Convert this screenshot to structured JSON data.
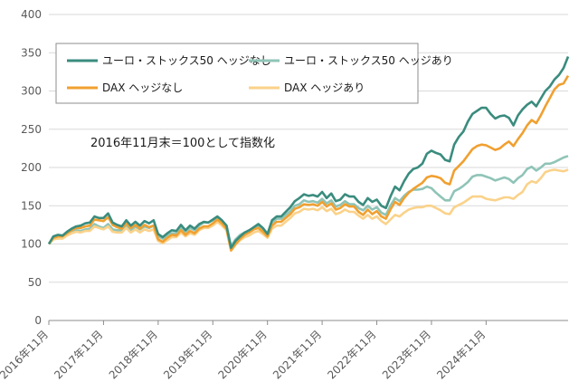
{
  "chart_data": {
    "type": "line",
    "ylim": [
      0,
      400
    ],
    "yticks": [
      0,
      50,
      100,
      150,
      200,
      250,
      300,
      350,
      400
    ],
    "x_tick_labels": [
      "2016年11月",
      "2017年11月",
      "2018年11月",
      "2019年11月",
      "2020年11月",
      "2021年11月",
      "2022年11月",
      "2023年11月",
      "2024年11月"
    ],
    "annotation": "2016年11月末＝100として指数化",
    "series": [
      {
        "name": "ユーロ・ストックス50 ヘッジなし",
        "color": "#3a8c7e",
        "values": [
          100,
          110,
          112,
          111,
          116,
          120,
          123,
          124,
          127,
          128,
          136,
          134,
          134,
          140,
          128,
          125,
          123,
          131,
          124,
          129,
          124,
          130,
          127,
          131,
          113,
          109,
          114,
          118,
          117,
          125,
          118,
          124,
          120,
          126,
          129,
          128,
          132,
          136,
          131,
          124,
          95,
          104,
          110,
          115,
          118,
          122,
          126,
          121,
          113,
          131,
          136,
          136,
          142,
          148,
          156,
          160,
          165,
          163,
          164,
          162,
          168,
          160,
          166,
          156,
          158,
          165,
          162,
          162,
          155,
          151,
          160,
          155,
          158,
          150,
          147,
          162,
          175,
          170,
          182,
          192,
          198,
          200,
          205,
          218,
          222,
          219,
          217,
          210,
          208,
          230,
          240,
          247,
          260,
          270,
          274,
          278,
          278,
          270,
          264,
          267,
          268,
          265,
          255,
          268,
          276,
          282,
          286,
          280,
          290,
          300,
          306,
          315,
          321,
          330,
          345
        ]
      },
      {
        "name": "ユーロ・ストックス50 ヘッジあり",
        "color": "#8fc4b7",
        "values": [
          100,
          107,
          109,
          109,
          113,
          117,
          118,
          117,
          119,
          120,
          126,
          123,
          121,
          126,
          119,
          118,
          118,
          124,
          118,
          123,
          119,
          123,
          121,
          124,
          110,
          107,
          111,
          114,
          114,
          121,
          116,
          121,
          118,
          124,
          128,
          128,
          131,
          135,
          130,
          124,
          97,
          106,
          112,
          115,
          117,
          121,
          124,
          119,
          112,
          128,
          133,
          133,
          138,
          143,
          150,
          152,
          157,
          155,
          156,
          154,
          159,
          153,
          157,
          149,
          151,
          156,
          152,
          152,
          147,
          144,
          150,
          145,
          148,
          141,
          138,
          150,
          160,
          156,
          163,
          168,
          171,
          171,
          172,
          175,
          173,
          167,
          162,
          157,
          157,
          169,
          172,
          176,
          181,
          188,
          190,
          190,
          188,
          186,
          183,
          185,
          187,
          185,
          180,
          186,
          190,
          198,
          201,
          196,
          200,
          205,
          205,
          207,
          210,
          213,
          215
        ]
      },
      {
        "name": "DAX ヘッジなし",
        "color": "#f0a030",
        "values": [
          100,
          108,
          110,
          110,
          114,
          118,
          121,
          121,
          123,
          124,
          132,
          131,
          130,
          135,
          125,
          122,
          120,
          127,
          121,
          125,
          120,
          125,
          122,
          124,
          106,
          103,
          108,
          112,
          111,
          118,
          112,
          117,
          114,
          120,
          123,
          123,
          127,
          132,
          127,
          120,
          92,
          100,
          107,
          112,
          115,
          119,
          121,
          116,
          110,
          124,
          129,
          129,
          134,
          139,
          146,
          148,
          152,
          151,
          152,
          150,
          155,
          149,
          153,
          145,
          147,
          152,
          149,
          149,
          142,
          138,
          145,
          139,
          143,
          136,
          133,
          145,
          155,
          151,
          160,
          167,
          172,
          176,
          180,
          187,
          189,
          188,
          186,
          180,
          178,
          196,
          202,
          208,
          216,
          224,
          228,
          230,
          229,
          226,
          223,
          225,
          230,
          234,
          228,
          237,
          245,
          255,
          262,
          258,
          268,
          280,
          291,
          302,
          308,
          310,
          320
        ]
      },
      {
        "name": "DAX ヘッジあり",
        "color": "#fad28a",
        "values": [
          100,
          106,
          107,
          107,
          111,
          114,
          116,
          115,
          117,
          117,
          123,
          121,
          119,
          123,
          116,
          115,
          115,
          121,
          115,
          119,
          115,
          119,
          117,
          119,
          104,
          101,
          105,
          109,
          109,
          115,
          110,
          114,
          112,
          118,
          121,
          121,
          124,
          129,
          124,
          118,
          91,
          99,
          105,
          109,
          111,
          115,
          117,
          113,
          108,
          120,
          124,
          124,
          129,
          134,
          140,
          142,
          146,
          145,
          146,
          144,
          148,
          143,
          146,
          139,
          141,
          145,
          142,
          142,
          137,
          133,
          138,
          133,
          136,
          130,
          126,
          132,
          138,
          136,
          141,
          145,
          147,
          148,
          148,
          150,
          150,
          147,
          144,
          140,
          139,
          148,
          151,
          154,
          158,
          162,
          162,
          162,
          159,
          158,
          157,
          159,
          161,
          161,
          159,
          164,
          168,
          178,
          182,
          180,
          186,
          194,
          196,
          197,
          196,
          195,
          197
        ]
      }
    ]
  }
}
